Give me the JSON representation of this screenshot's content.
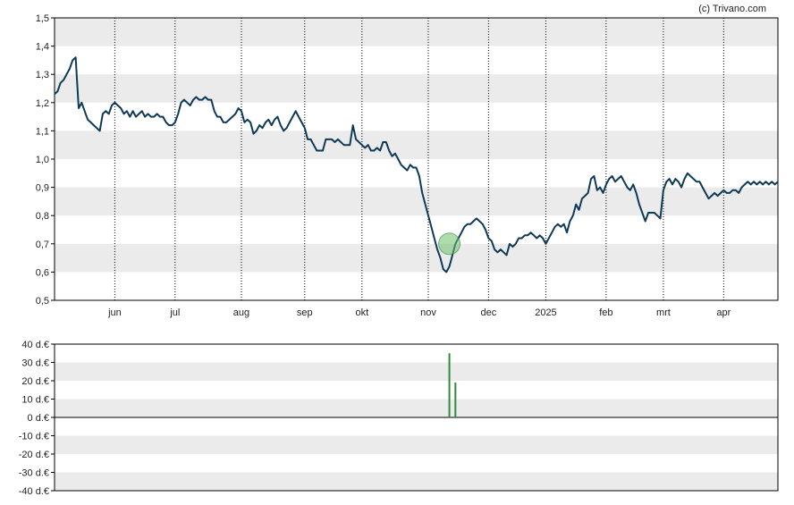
{
  "credit": "(c) Trivano.com",
  "colors": {
    "price_line": "#0f3a57",
    "marker_fill": "#6cbf6c",
    "volume_bar": "#2e8b3e",
    "band": "#ebebeb",
    "frame": "#000000"
  },
  "chart_data": [
    {
      "type": "line",
      "title": "",
      "x_tick_labels": [
        "jun",
        "jul",
        "aug",
        "sep",
        "okt",
        "nov",
        "dec",
        "2025",
        "feb",
        "mrt",
        "apr"
      ],
      "y_tick_labels": [
        "0,5",
        "0,6",
        "0,7",
        "0,8",
        "0,9",
        "1,0",
        "1,1",
        "1,2",
        "1,3",
        "1,4",
        "1,5"
      ],
      "ylim": [
        0.5,
        1.5
      ],
      "xlim": [
        0,
        240
      ],
      "x_ticks": [
        20,
        40,
        62,
        83,
        102,
        124,
        144,
        163,
        183,
        202,
        222
      ],
      "grid": "alternating horizontal bands, dotted vertical lines",
      "marker": {
        "x": 131,
        "y": 0.7
      },
      "series": [
        {
          "values": [
            [
              0,
              1.23
            ],
            [
              1,
              1.24
            ],
            [
              2,
              1.27
            ],
            [
              3,
              1.28
            ],
            [
              4,
              1.3
            ],
            [
              5,
              1.32
            ],
            [
              6,
              1.35
            ],
            [
              7,
              1.36
            ],
            [
              8,
              1.18
            ],
            [
              9,
              1.2
            ],
            [
              10,
              1.17
            ],
            [
              11,
              1.14
            ],
            [
              12,
              1.13
            ],
            [
              13,
              1.12
            ],
            [
              14,
              1.11
            ],
            [
              15,
              1.1
            ],
            [
              16,
              1.16
            ],
            [
              17,
              1.17
            ],
            [
              18,
              1.16
            ],
            [
              19,
              1.19
            ],
            [
              20,
              1.2
            ],
            [
              21,
              1.19
            ],
            [
              22,
              1.18
            ],
            [
              23,
              1.16
            ],
            [
              24,
              1.17
            ],
            [
              25,
              1.15
            ],
            [
              26,
              1.17
            ],
            [
              27,
              1.15
            ],
            [
              28,
              1.16
            ],
            [
              29,
              1.17
            ],
            [
              30,
              1.15
            ],
            [
              31,
              1.16
            ],
            [
              32,
              1.15
            ],
            [
              33,
              1.15
            ],
            [
              34,
              1.16
            ],
            [
              35,
              1.15
            ],
            [
              36,
              1.15
            ],
            [
              37,
              1.13
            ],
            [
              38,
              1.12
            ],
            [
              39,
              1.12
            ],
            [
              40,
              1.13
            ],
            [
              41,
              1.16
            ],
            [
              42,
              1.2
            ],
            [
              43,
              1.21
            ],
            [
              44,
              1.2
            ],
            [
              45,
              1.19
            ],
            [
              46,
              1.21
            ],
            [
              47,
              1.22
            ],
            [
              48,
              1.21
            ],
            [
              49,
              1.21
            ],
            [
              50,
              1.22
            ],
            [
              51,
              1.21
            ],
            [
              52,
              1.21
            ],
            [
              53,
              1.17
            ],
            [
              54,
              1.15
            ],
            [
              55,
              1.15
            ],
            [
              56,
              1.13
            ],
            [
              57,
              1.13
            ],
            [
              58,
              1.14
            ],
            [
              59,
              1.15
            ],
            [
              60,
              1.16
            ],
            [
              61,
              1.18
            ],
            [
              62,
              1.17
            ],
            [
              63,
              1.13
            ],
            [
              64,
              1.14
            ],
            [
              65,
              1.13
            ],
            [
              66,
              1.09
            ],
            [
              67,
              1.1
            ],
            [
              68,
              1.12
            ],
            [
              69,
              1.11
            ],
            [
              70,
              1.13
            ],
            [
              71,
              1.14
            ],
            [
              72,
              1.12
            ],
            [
              73,
              1.14
            ],
            [
              74,
              1.15
            ],
            [
              75,
              1.12
            ],
            [
              76,
              1.1
            ],
            [
              77,
              1.11
            ],
            [
              78,
              1.13
            ],
            [
              79,
              1.15
            ],
            [
              80,
              1.17
            ],
            [
              81,
              1.15
            ],
            [
              82,
              1.13
            ],
            [
              83,
              1.11
            ],
            [
              84,
              1.07
            ],
            [
              85,
              1.07
            ],
            [
              86,
              1.05
            ],
            [
              87,
              1.03
            ],
            [
              88,
              1.03
            ],
            [
              89,
              1.03
            ],
            [
              90,
              1.07
            ],
            [
              91,
              1.07
            ],
            [
              92,
              1.07
            ],
            [
              93,
              1.06
            ],
            [
              94,
              1.07
            ],
            [
              95,
              1.06
            ],
            [
              96,
              1.05
            ],
            [
              97,
              1.05
            ],
            [
              98,
              1.05
            ],
            [
              99,
              1.12
            ],
            [
              100,
              1.07
            ],
            [
              101,
              1.06
            ],
            [
              102,
              1.05
            ],
            [
              103,
              1.04
            ],
            [
              104,
              1.05
            ],
            [
              105,
              1.03
            ],
            [
              106,
              1.03
            ],
            [
              107,
              1.04
            ],
            [
              108,
              1.03
            ],
            [
              109,
              1.06
            ],
            [
              110,
              1.06
            ],
            [
              111,
              1.03
            ],
            [
              112,
              1.01
            ],
            [
              113,
              1.02
            ],
            [
              114,
              1.0
            ],
            [
              115,
              0.98
            ],
            [
              116,
              0.97
            ],
            [
              117,
              0.96
            ],
            [
              118,
              0.98
            ],
            [
              119,
              0.97
            ],
            [
              120,
              0.97
            ],
            [
              121,
              0.94
            ],
            [
              122,
              0.88
            ],
            [
              123,
              0.84
            ],
            [
              124,
              0.8
            ],
            [
              125,
              0.76
            ],
            [
              126,
              0.72
            ],
            [
              127,
              0.68
            ],
            [
              128,
              0.65
            ],
            [
              129,
              0.61
            ],
            [
              130,
              0.6
            ],
            [
              131,
              0.62
            ],
            [
              132,
              0.66
            ],
            [
              133,
              0.7
            ],
            [
              134,
              0.72
            ],
            [
              135,
              0.74
            ],
            [
              136,
              0.76
            ],
            [
              137,
              0.77
            ],
            [
              138,
              0.77
            ],
            [
              139,
              0.78
            ],
            [
              140,
              0.79
            ],
            [
              141,
              0.78
            ],
            [
              142,
              0.77
            ],
            [
              143,
              0.75
            ],
            [
              144,
              0.72
            ],
            [
              145,
              0.71
            ],
            [
              146,
              0.68
            ],
            [
              147,
              0.67
            ],
            [
              148,
              0.68
            ],
            [
              149,
              0.67
            ],
            [
              150,
              0.66
            ],
            [
              151,
              0.7
            ],
            [
              152,
              0.69
            ],
            [
              153,
              0.7
            ],
            [
              154,
              0.72
            ],
            [
              155,
              0.72
            ],
            [
              156,
              0.73
            ],
            [
              157,
              0.73
            ],
            [
              158,
              0.74
            ],
            [
              159,
              0.73
            ],
            [
              160,
              0.72
            ],
            [
              161,
              0.73
            ],
            [
              162,
              0.72
            ],
            [
              163,
              0.7
            ],
            [
              164,
              0.72
            ],
            [
              165,
              0.74
            ],
            [
              166,
              0.76
            ],
            [
              167,
              0.77
            ],
            [
              168,
              0.76
            ],
            [
              169,
              0.77
            ],
            [
              170,
              0.74
            ],
            [
              171,
              0.78
            ],
            [
              172,
              0.8
            ],
            [
              173,
              0.84
            ],
            [
              174,
              0.82
            ],
            [
              175,
              0.86
            ],
            [
              176,
              0.87
            ],
            [
              177,
              0.88
            ],
            [
              178,
              0.93
            ],
            [
              179,
              0.94
            ],
            [
              180,
              0.89
            ],
            [
              181,
              0.9
            ],
            [
              182,
              0.88
            ],
            [
              183,
              0.91
            ],
            [
              184,
              0.93
            ],
            [
              185,
              0.94
            ],
            [
              186,
              0.92
            ],
            [
              187,
              0.93
            ],
            [
              188,
              0.94
            ],
            [
              189,
              0.92
            ],
            [
              190,
              0.9
            ],
            [
              191,
              0.89
            ],
            [
              192,
              0.91
            ],
            [
              193,
              0.88
            ],
            [
              194,
              0.84
            ],
            [
              195,
              0.81
            ],
            [
              196,
              0.78
            ],
            [
              197,
              0.81
            ],
            [
              198,
              0.81
            ],
            [
              199,
              0.81
            ],
            [
              200,
              0.8
            ],
            [
              201,
              0.79
            ],
            [
              202,
              0.89
            ],
            [
              203,
              0.92
            ],
            [
              204,
              0.93
            ],
            [
              205,
              0.91
            ],
            [
              206,
              0.93
            ],
            [
              207,
              0.92
            ],
            [
              208,
              0.9
            ],
            [
              209,
              0.93
            ],
            [
              210,
              0.95
            ],
            [
              211,
              0.94
            ],
            [
              212,
              0.93
            ],
            [
              213,
              0.92
            ],
            [
              214,
              0.92
            ],
            [
              215,
              0.9
            ],
            [
              216,
              0.88
            ],
            [
              217,
              0.86
            ],
            [
              218,
              0.87
            ],
            [
              219,
              0.88
            ],
            [
              220,
              0.87
            ],
            [
              221,
              0.88
            ],
            [
              222,
              0.89
            ],
            [
              223,
              0.88
            ],
            [
              224,
              0.88
            ],
            [
              225,
              0.89
            ],
            [
              226,
              0.89
            ],
            [
              227,
              0.88
            ],
            [
              228,
              0.9
            ],
            [
              229,
              0.91
            ],
            [
              230,
              0.92
            ],
            [
              231,
              0.91
            ],
            [
              232,
              0.92
            ],
            [
              233,
              0.91
            ],
            [
              234,
              0.92
            ],
            [
              235,
              0.91
            ],
            [
              236,
              0.92
            ],
            [
              237,
              0.91
            ],
            [
              238,
              0.92
            ],
            [
              239,
              0.91
            ],
            [
              240,
              0.92
            ]
          ]
        }
      ]
    },
    {
      "type": "bar",
      "title": "",
      "y_tick_labels": [
        "40 d.€",
        "30 d.€",
        "20 d.€",
        "10 d.€",
        "0 d.€",
        "-10 d.€",
        "-20 d.€",
        "-30 d.€",
        "-40 d.€"
      ],
      "ylim": [
        -40,
        40
      ],
      "xlim": [
        0,
        240
      ],
      "grid": "alternating horizontal bands",
      "bars": [
        {
          "x": 131,
          "value": 35
        },
        {
          "x": 133,
          "value": 19
        }
      ]
    }
  ]
}
